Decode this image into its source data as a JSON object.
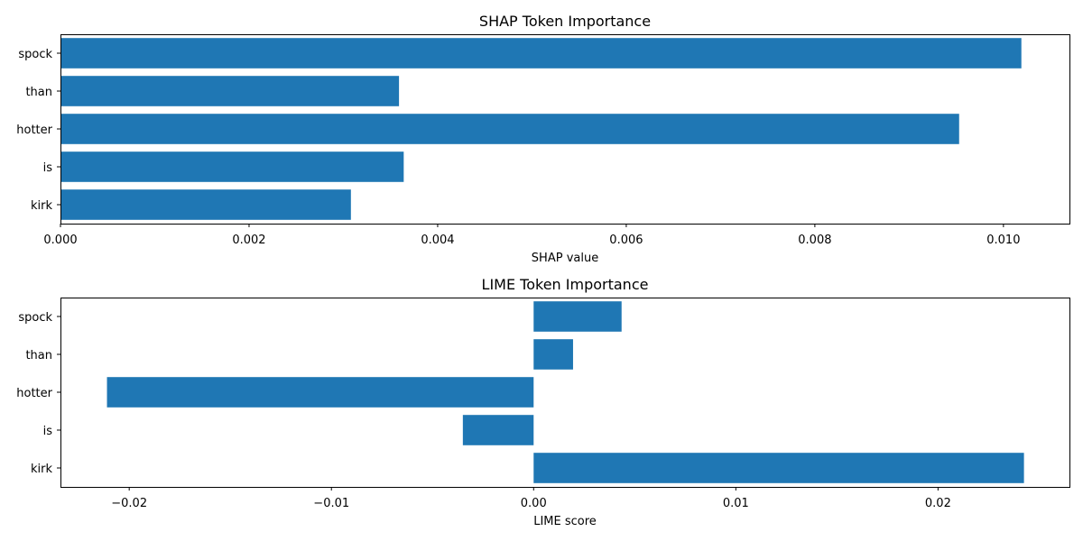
{
  "chart_data": [
    {
      "type": "bar",
      "orientation": "horizontal",
      "title": "SHAP Token Importance",
      "xlabel": "SHAP value",
      "ylabel": "",
      "categories": [
        "spock",
        "than",
        "hotter",
        "is",
        "kirk"
      ],
      "values": [
        0.01019,
        0.00359,
        0.00953,
        0.00364,
        0.00308
      ],
      "xlim": [
        0.0,
        0.0107
      ],
      "xticks": [
        0.0,
        0.002,
        0.004,
        0.006,
        0.008,
        0.01
      ],
      "xtick_labels": [
        "0.000",
        "0.002",
        "0.004",
        "0.006",
        "0.008",
        "0.010"
      ],
      "color": "#1f77b4",
      "grid": false
    },
    {
      "type": "bar",
      "orientation": "horizontal",
      "title": "LIME Token Importance",
      "xlabel": "LIME score",
      "ylabel": "",
      "categories": [
        "spock",
        "than",
        "hotter",
        "is",
        "kirk"
      ],
      "values": [
        0.00435,
        0.00195,
        -0.0211,
        -0.0035,
        0.02425
      ],
      "xlim": [
        -0.0234,
        0.0265
      ],
      "xticks": [
        -0.02,
        -0.01,
        0.0,
        0.01,
        0.02
      ],
      "xtick_labels": [
        "−0.02",
        "−0.01",
        "0.00",
        "0.01",
        "0.02"
      ],
      "color": "#1f77b4",
      "grid": false
    }
  ]
}
